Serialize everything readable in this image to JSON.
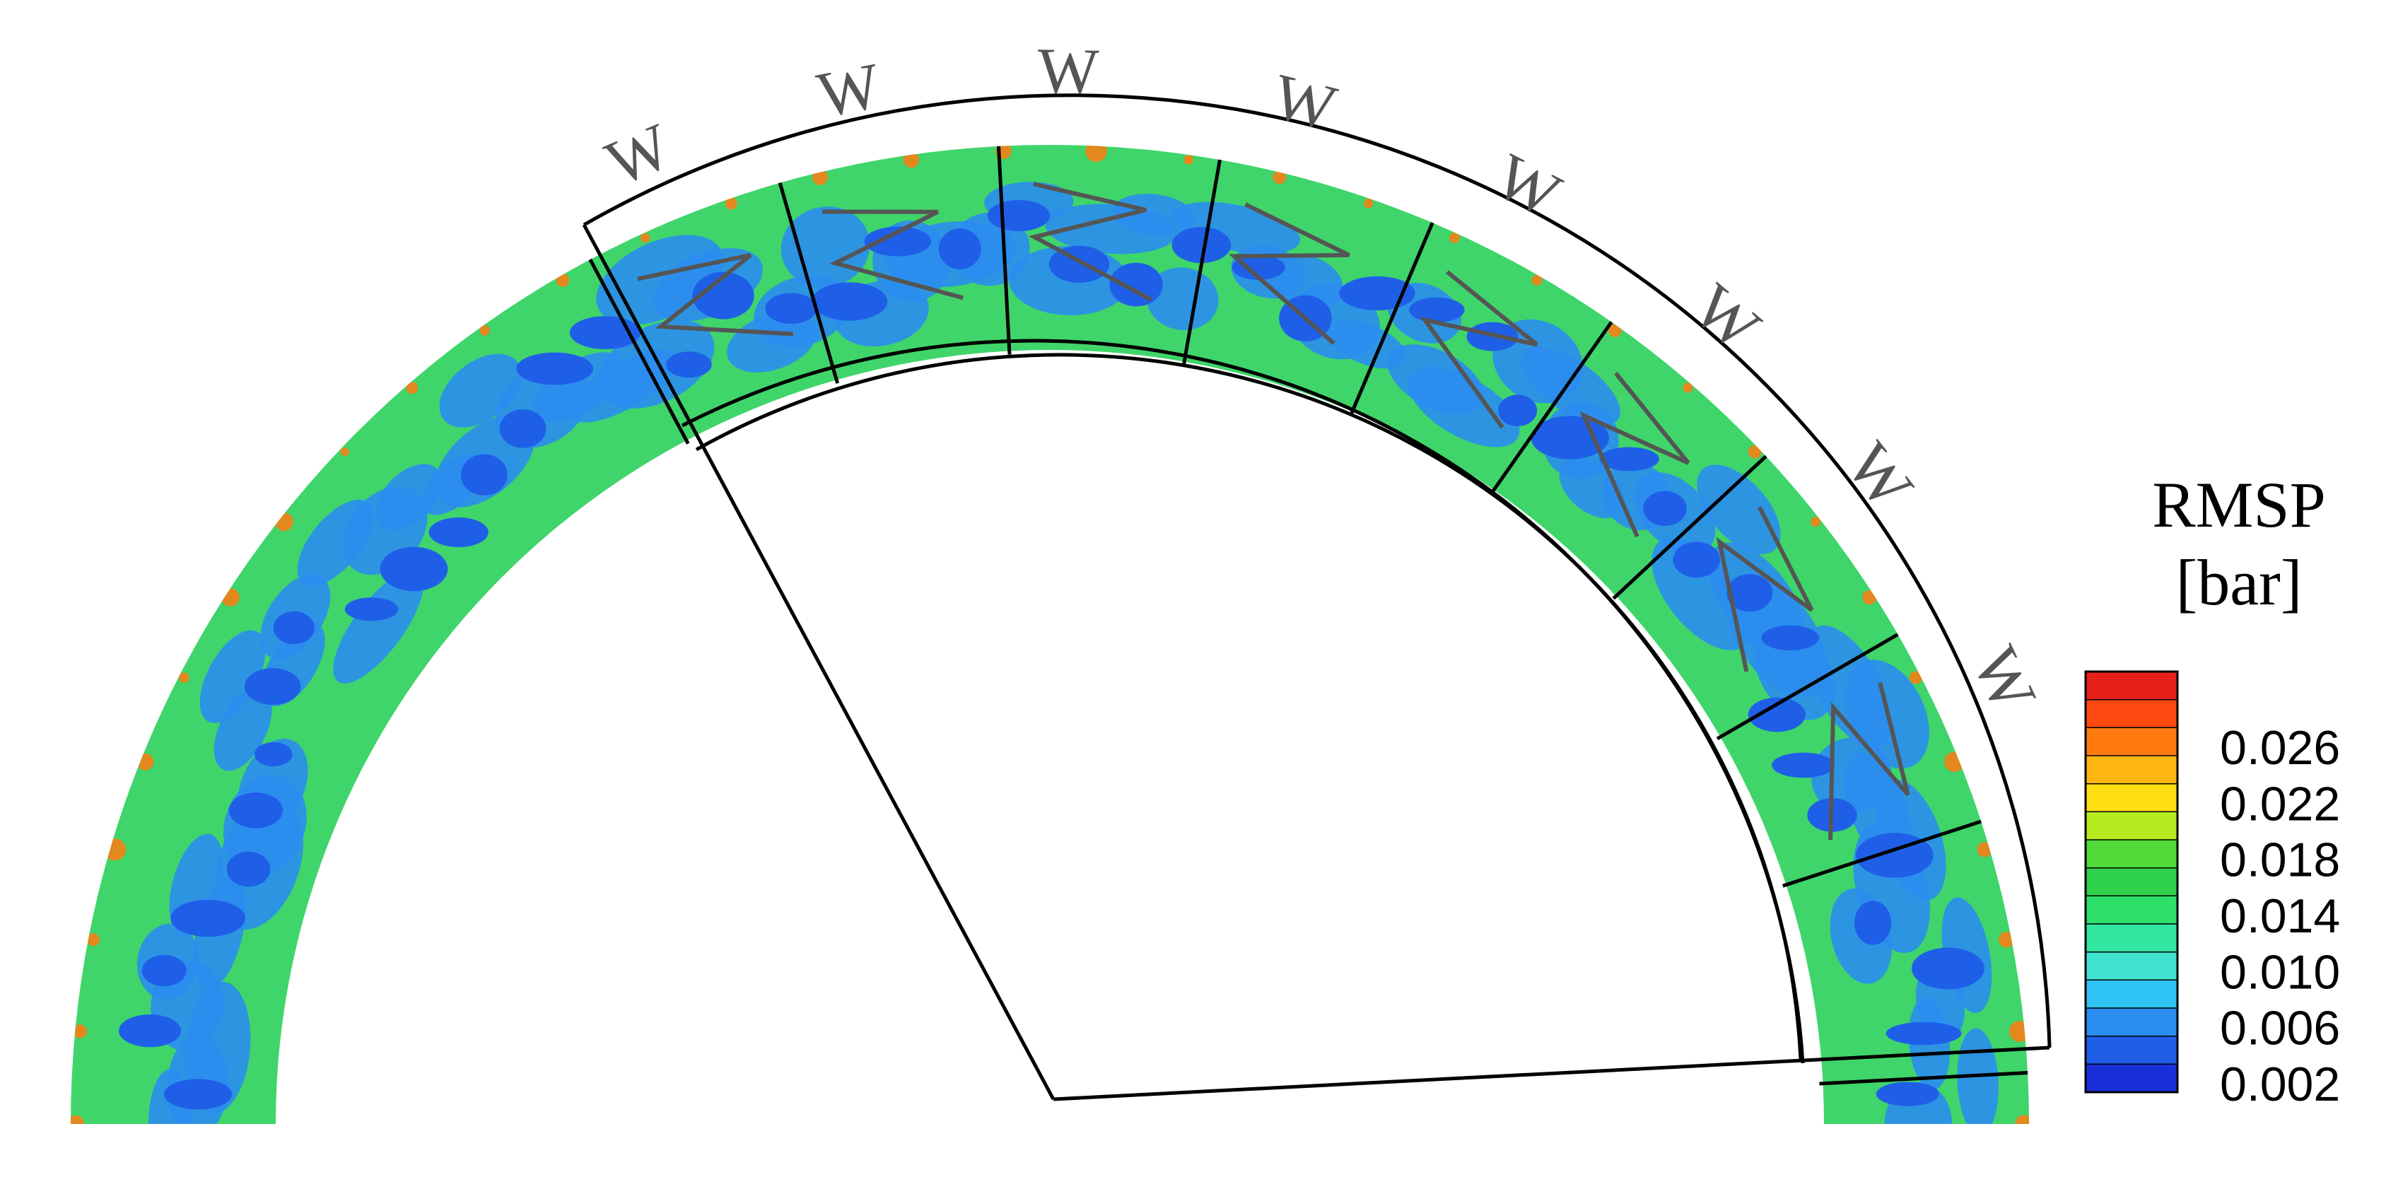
{
  "legend": {
    "title_line1": "RMSP",
    "title_line2": "[bar]",
    "tick_labels": [
      "0.026",
      "0.022",
      "0.018",
      "0.014",
      "0.010",
      "0.006",
      "0.002"
    ],
    "level_colors": [
      "#1a2fd9",
      "#1f5fe8",
      "#2b8df0",
      "#2ec3f2",
      "#40e3d0",
      "#31e6a1",
      "#2ee06a",
      "#2fd04c",
      "#52d93a",
      "#b5ea1e",
      "#ffdf14",
      "#ffb512",
      "#ff7a10",
      "#ff4a12",
      "#e8201a"
    ]
  },
  "channel_labels": [
    "W",
    "W",
    "W",
    "W",
    "W",
    "W",
    "W",
    "W"
  ],
  "colors": {
    "outline": "#000000",
    "wire": "#555555",
    "field_base": "#3fd56a",
    "low": "#1f5fe8",
    "mid": "#2b8df0",
    "high": "#ff7a10"
  }
}
